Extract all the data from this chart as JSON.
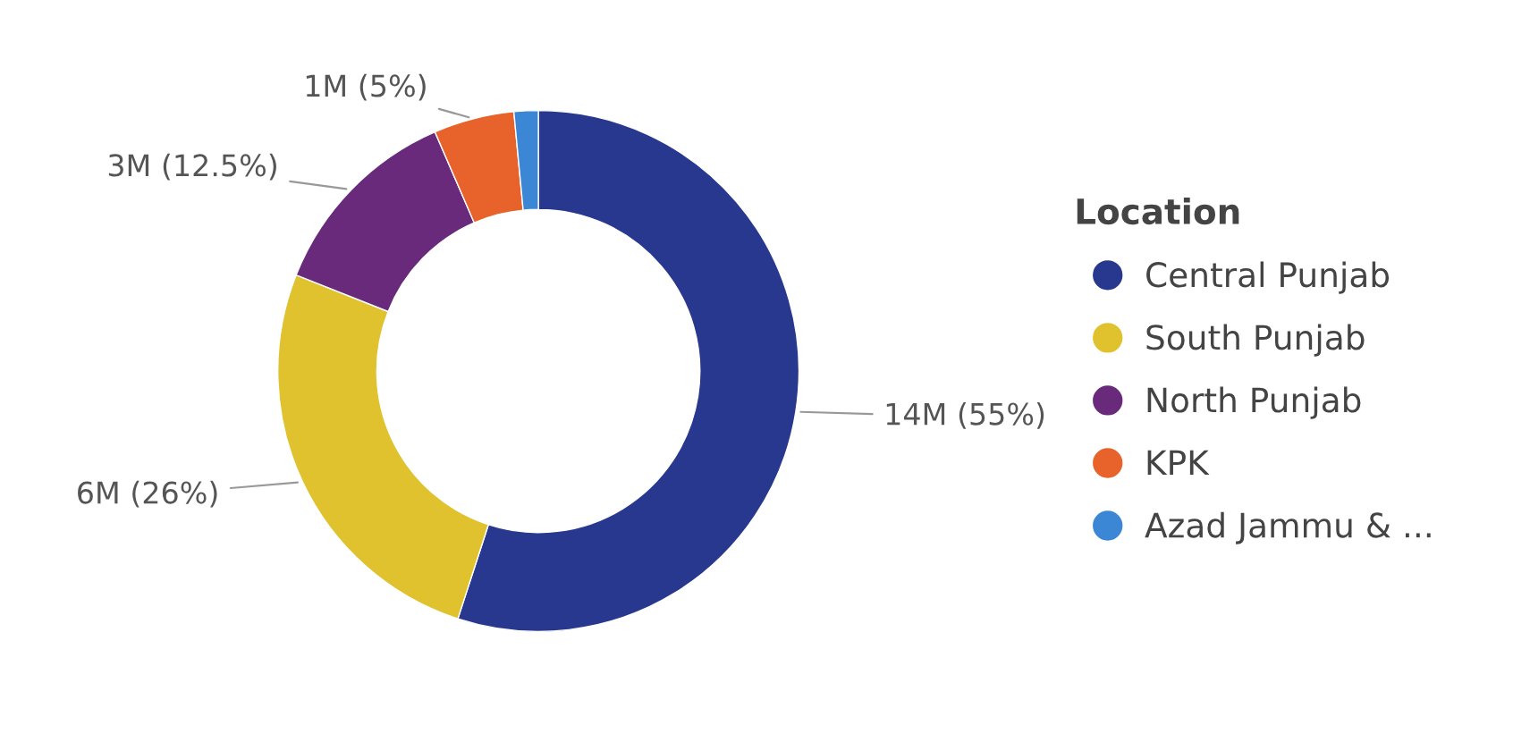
{
  "chart_data": {
    "type": "donut",
    "legend_title": "Location",
    "legend": "right",
    "categories": [
      "Central Punjab",
      "South Punjab",
      "North Punjab",
      "KPK",
      "Azad Jammu & ..."
    ],
    "values": [
      55,
      26,
      12.5,
      5,
      1.5
    ],
    "value_labels": [
      "14M (55%)",
      "6M (26%)",
      "3M (12.5%)",
      "1M (5%)",
      null
    ],
    "colors": [
      "#28388f",
      "#e0c12e",
      "#6a2a7b",
      "#e8632b",
      "#3b87d6"
    ]
  }
}
